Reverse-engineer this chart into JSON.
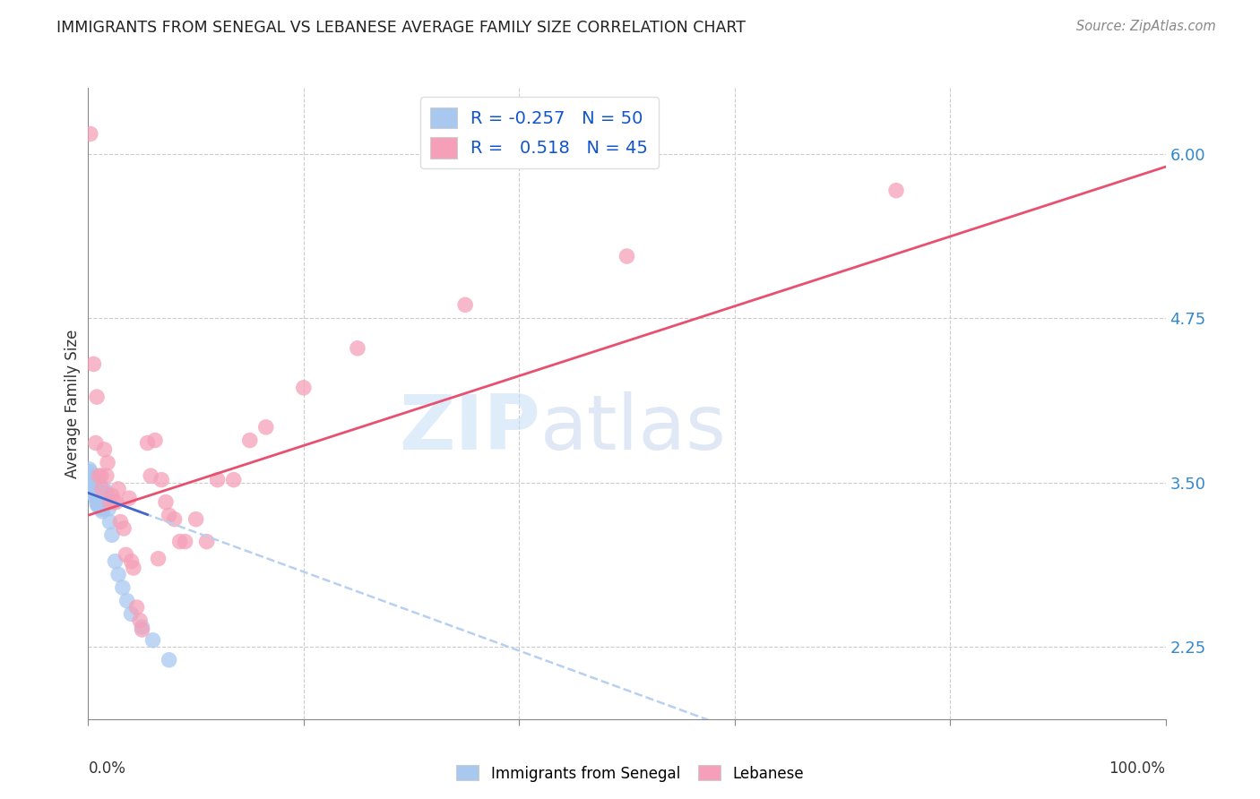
{
  "title": "IMMIGRANTS FROM SENEGAL VS LEBANESE AVERAGE FAMILY SIZE CORRELATION CHART",
  "source": "Source: ZipAtlas.com",
  "ylabel": "Average Family Size",
  "yticks": [
    2.25,
    3.5,
    4.75,
    6.0
  ],
  "ytick_labels": [
    "2.25",
    "3.50",
    "4.75",
    "6.00"
  ],
  "watermark_zip": "ZIP",
  "watermark_atlas": "atlas",
  "senegal_color": "#a8c8f0",
  "lebanese_color": "#f5a0b8",
  "senegal_line_color": "#4466cc",
  "lebanese_line_color": "#e85070",
  "senegal_dash_color": "#b8d0f0",
  "background_color": "#ffffff",
  "grid_color": "#cccccc",
  "title_color": "#333333",
  "right_axis_color": "#3388cc",
  "legend_r1": "R = -0.257",
  "legend_n1": "N = 50",
  "legend_r2": "R =   0.518",
  "legend_n2": "N = 45",
  "senegal_x": [
    0.001,
    0.001,
    0.002,
    0.002,
    0.003,
    0.003,
    0.003,
    0.004,
    0.004,
    0.004,
    0.005,
    0.005,
    0.005,
    0.006,
    0.006,
    0.006,
    0.007,
    0.007,
    0.007,
    0.008,
    0.008,
    0.008,
    0.009,
    0.009,
    0.009,
    0.01,
    0.01,
    0.011,
    0.011,
    0.012,
    0.012,
    0.013,
    0.013,
    0.014,
    0.015,
    0.015,
    0.016,
    0.017,
    0.018,
    0.019,
    0.02,
    0.022,
    0.025,
    0.028,
    0.032,
    0.036,
    0.04,
    0.05,
    0.06,
    0.075
  ],
  "senegal_y": [
    3.6,
    3.55,
    3.58,
    3.52,
    3.55,
    3.5,
    3.48,
    3.52,
    3.48,
    3.45,
    3.5,
    3.46,
    3.42,
    3.48,
    3.44,
    3.4,
    3.46,
    3.42,
    3.38,
    3.42,
    3.38,
    3.34,
    3.4,
    3.36,
    3.32,
    3.38,
    3.34,
    3.36,
    3.32,
    3.34,
    3.3,
    3.32,
    3.28,
    3.3,
    3.45,
    3.38,
    3.42,
    3.4,
    3.35,
    3.3,
    3.2,
    3.1,
    2.9,
    2.8,
    2.7,
    2.6,
    2.5,
    2.4,
    2.3,
    2.15
  ],
  "lebanese_x": [
    0.002,
    0.005,
    0.007,
    0.008,
    0.01,
    0.012,
    0.013,
    0.015,
    0.017,
    0.018,
    0.02,
    0.022,
    0.024,
    0.026,
    0.028,
    0.03,
    0.033,
    0.035,
    0.038,
    0.04,
    0.042,
    0.045,
    0.048,
    0.05,
    0.055,
    0.058,
    0.062,
    0.065,
    0.068,
    0.072,
    0.075,
    0.08,
    0.085,
    0.09,
    0.1,
    0.11,
    0.12,
    0.135,
    0.15,
    0.165,
    0.2,
    0.25,
    0.35,
    0.5,
    0.75
  ],
  "lebanese_y": [
    6.15,
    4.4,
    3.8,
    4.15,
    3.55,
    3.55,
    3.45,
    3.75,
    3.55,
    3.65,
    3.35,
    3.4,
    3.35,
    3.35,
    3.45,
    3.2,
    3.15,
    2.95,
    3.38,
    2.9,
    2.85,
    2.55,
    2.45,
    2.38,
    3.8,
    3.55,
    3.82,
    2.92,
    3.52,
    3.35,
    3.25,
    3.22,
    3.05,
    3.05,
    3.22,
    3.05,
    3.52,
    3.52,
    3.82,
    3.92,
    4.22,
    4.52,
    4.85,
    5.22,
    5.72
  ],
  "senegal_trend": {
    "slope": -3.0,
    "intercept": 3.42
  },
  "lebanese_trend": {
    "slope": 2.65,
    "intercept": 3.25
  },
  "xlim": [
    0.0,
    1.0
  ],
  "ylim": [
    1.7,
    6.5
  ]
}
